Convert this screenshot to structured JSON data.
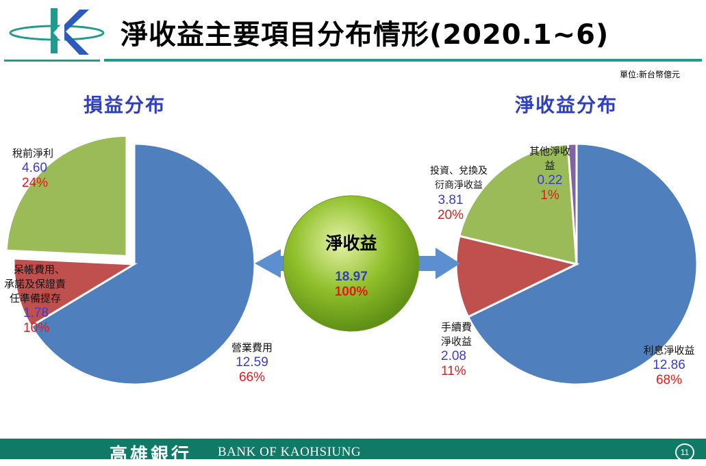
{
  "slide": {
    "title": "淨收益主要項目分布情形(2020.1~6)",
    "unit_note": "單位:新台幣億元",
    "page_number": "11"
  },
  "footer": {
    "bank_name_zh": "高雄銀行",
    "bank_name_en": "BANK OF KAOHSIUNG"
  },
  "colors": {
    "brand_teal": "#1f9a8c",
    "blue_slice": "#4f7fbd",
    "red_slice": "#c0504d",
    "green_slice": "#9bbb59",
    "purple_slice": "#8064a2",
    "center_green": "#8fbf2a",
    "arrow_blue": "#5b8fd0"
  },
  "center": {
    "label": "淨收益",
    "value": "18.97",
    "percent": "100%"
  },
  "chart_data": [
    {
      "type": "pie",
      "title": "損益分布",
      "slices": [
        {
          "name": "營業費用",
          "value": 12.59,
          "percent": "66%",
          "value_label": "12.59"
        },
        {
          "name": "呆帳費用、承諾及保證責任準備提存",
          "value": 1.78,
          "percent": "10%",
          "value_label": "1.78",
          "label_lines": [
            "呆帳費用、",
            "承諾及保證責",
            "任準備提存"
          ]
        },
        {
          "name": "稅前淨利",
          "value": 4.6,
          "percent": "24%",
          "value_label": "4.60"
        }
      ]
    },
    {
      "type": "pie",
      "title": "淨收益分布",
      "slices": [
        {
          "name": "利息淨收益",
          "value": 12.86,
          "percent": "68%",
          "value_label": "12.86"
        },
        {
          "name": "手續費淨收益",
          "value": 2.08,
          "percent": "11%",
          "value_label": "2.08",
          "label_lines": [
            "手續費",
            "淨收益"
          ]
        },
        {
          "name": "投資、兌換及衍商淨收益",
          "value": 3.81,
          "percent": "20%",
          "value_label": "3.81",
          "label_lines": [
            "投資、兌換及",
            "衍商淨收益"
          ]
        },
        {
          "name": "其他淨收益",
          "value": 0.22,
          "percent": "1%",
          "value_label": "0.22",
          "label_lines": [
            "其他淨收",
            "益"
          ]
        }
      ]
    }
  ]
}
